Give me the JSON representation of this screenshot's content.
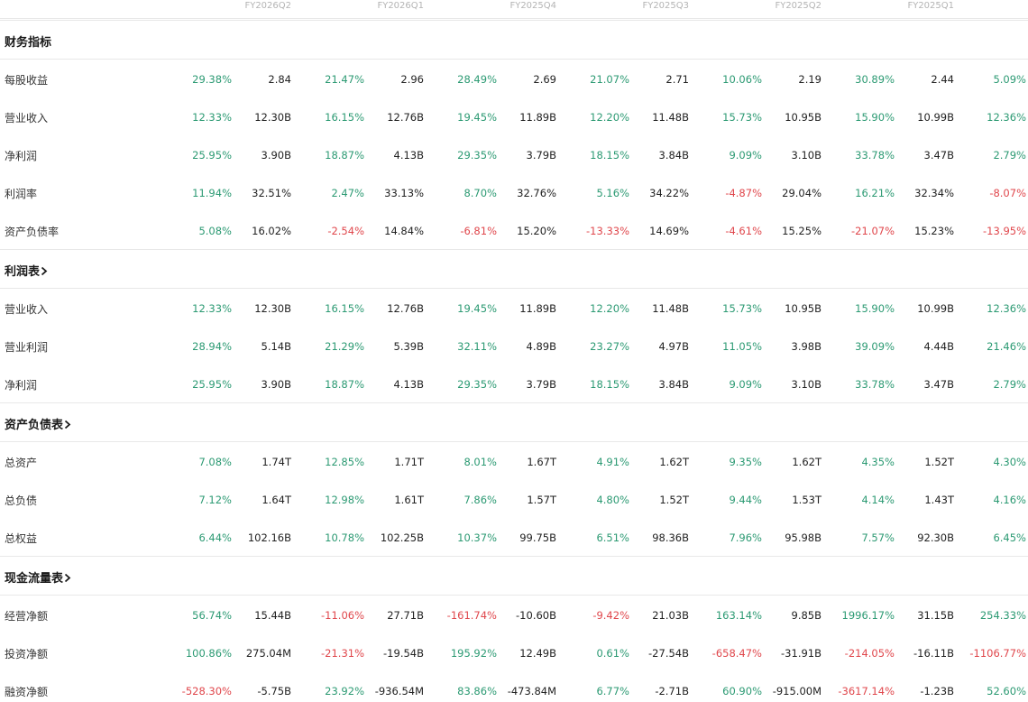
{
  "colors": {
    "positive": "#2c9a73",
    "negative": "#e0474c"
  },
  "periods": [
    "FY2026Q2",
    "FY2026Q1",
    "FY2025Q4",
    "FY2025Q3",
    "FY2025Q2",
    "FY2025Q1"
  ],
  "sections": [
    {
      "title": "财务指标",
      "has_chevron": false,
      "rows": [
        {
          "label": "每股收益",
          "cells": [
            [
              "29.38%",
              "2.84"
            ],
            [
              "21.47%",
              "2.96"
            ],
            [
              "28.49%",
              "2.69"
            ],
            [
              "21.07%",
              "2.71"
            ],
            [
              "10.06%",
              "2.19"
            ],
            [
              "30.89%",
              "2.44"
            ],
            [
              "5.09%",
              ""
            ]
          ]
        },
        {
          "label": "营业收入",
          "cells": [
            [
              "12.33%",
              "12.30B"
            ],
            [
              "16.15%",
              "12.76B"
            ],
            [
              "19.45%",
              "11.89B"
            ],
            [
              "12.20%",
              "11.48B"
            ],
            [
              "15.73%",
              "10.95B"
            ],
            [
              "15.90%",
              "10.99B"
            ],
            [
              "12.36%",
              ""
            ]
          ]
        },
        {
          "label": "净利润",
          "cells": [
            [
              "25.95%",
              "3.90B"
            ],
            [
              "18.87%",
              "4.13B"
            ],
            [
              "29.35%",
              "3.79B"
            ],
            [
              "18.15%",
              "3.84B"
            ],
            [
              "9.09%",
              "3.10B"
            ],
            [
              "33.78%",
              "3.47B"
            ],
            [
              "2.79%",
              ""
            ]
          ]
        },
        {
          "label": "利润率",
          "cells": [
            [
              "11.94%",
              "32.51%"
            ],
            [
              "2.47%",
              "33.13%"
            ],
            [
              "8.70%",
              "32.76%"
            ],
            [
              "5.16%",
              "34.22%"
            ],
            [
              "-4.87%",
              "29.04%"
            ],
            [
              "16.21%",
              "32.34%"
            ],
            [
              "-8.07%",
              ""
            ]
          ]
        },
        {
          "label": "资产负债率",
          "cells": [
            [
              "5.08%",
              "16.02%"
            ],
            [
              "-2.54%",
              "14.84%"
            ],
            [
              "-6.81%",
              "15.20%"
            ],
            [
              "-13.33%",
              "14.69%"
            ],
            [
              "-4.61%",
              "15.25%"
            ],
            [
              "-21.07%",
              "15.23%"
            ],
            [
              "-13.95%",
              ""
            ]
          ]
        }
      ]
    },
    {
      "title": "利润表",
      "has_chevron": true,
      "rows": [
        {
          "label": "营业收入",
          "cells": [
            [
              "12.33%",
              "12.30B"
            ],
            [
              "16.15%",
              "12.76B"
            ],
            [
              "19.45%",
              "11.89B"
            ],
            [
              "12.20%",
              "11.48B"
            ],
            [
              "15.73%",
              "10.95B"
            ],
            [
              "15.90%",
              "10.99B"
            ],
            [
              "12.36%",
              ""
            ]
          ]
        },
        {
          "label": "营业利润",
          "cells": [
            [
              "28.94%",
              "5.14B"
            ],
            [
              "21.29%",
              "5.39B"
            ],
            [
              "32.11%",
              "4.89B"
            ],
            [
              "23.27%",
              "4.97B"
            ],
            [
              "11.05%",
              "3.98B"
            ],
            [
              "39.09%",
              "4.44B"
            ],
            [
              "21.46%",
              ""
            ]
          ]
        },
        {
          "label": "净利润",
          "cells": [
            [
              "25.95%",
              "3.90B"
            ],
            [
              "18.87%",
              "4.13B"
            ],
            [
              "29.35%",
              "3.79B"
            ],
            [
              "18.15%",
              "3.84B"
            ],
            [
              "9.09%",
              "3.10B"
            ],
            [
              "33.78%",
              "3.47B"
            ],
            [
              "2.79%",
              ""
            ]
          ]
        }
      ]
    },
    {
      "title": "资产负债表",
      "has_chevron": true,
      "rows": [
        {
          "label": "总资产",
          "cells": [
            [
              "7.08%",
              "1.74T"
            ],
            [
              "12.85%",
              "1.71T"
            ],
            [
              "8.01%",
              "1.67T"
            ],
            [
              "4.91%",
              "1.62T"
            ],
            [
              "9.35%",
              "1.62T"
            ],
            [
              "4.35%",
              "1.52T"
            ],
            [
              "4.30%",
              ""
            ]
          ]
        },
        {
          "label": "总负债",
          "cells": [
            [
              "7.12%",
              "1.64T"
            ],
            [
              "12.98%",
              "1.61T"
            ],
            [
              "7.86%",
              "1.57T"
            ],
            [
              "4.80%",
              "1.52T"
            ],
            [
              "9.44%",
              "1.53T"
            ],
            [
              "4.14%",
              "1.43T"
            ],
            [
              "4.16%",
              ""
            ]
          ]
        },
        {
          "label": "总权益",
          "cells": [
            [
              "6.44%",
              "102.16B"
            ],
            [
              "10.78%",
              "102.25B"
            ],
            [
              "10.37%",
              "99.75B"
            ],
            [
              "6.51%",
              "98.36B"
            ],
            [
              "7.96%",
              "95.98B"
            ],
            [
              "7.57%",
              "92.30B"
            ],
            [
              "6.45%",
              ""
            ]
          ]
        }
      ]
    },
    {
      "title": "现金流量表",
      "has_chevron": true,
      "rows": [
        {
          "label": "经营净额",
          "cells": [
            [
              "56.74%",
              "15.44B"
            ],
            [
              "-11.06%",
              "27.71B"
            ],
            [
              "-161.74%",
              "-10.60B"
            ],
            [
              "-9.42%",
              "21.03B"
            ],
            [
              "163.14%",
              "9.85B"
            ],
            [
              "1996.17%",
              "31.15B"
            ],
            [
              "254.33%",
              ""
            ]
          ]
        },
        {
          "label": "投资净额",
          "cells": [
            [
              "100.86%",
              "275.04M"
            ],
            [
              "-21.31%",
              "-19.54B"
            ],
            [
              "195.92%",
              "12.49B"
            ],
            [
              "0.61%",
              "-27.54B"
            ],
            [
              "-658.47%",
              "-31.91B"
            ],
            [
              "-214.05%",
              "-16.11B"
            ],
            [
              "-1106.77%",
              ""
            ]
          ]
        },
        {
          "label": "融资净额",
          "cells": [
            [
              "-528.30%",
              "-5.75B"
            ],
            [
              "23.92%",
              "-936.54M"
            ],
            [
              "83.86%",
              "-473.84M"
            ],
            [
              "6.77%",
              "-2.71B"
            ],
            [
              "60.90%",
              "-915.00M"
            ],
            [
              "-3617.14%",
              "-1.23B"
            ],
            [
              "52.60%",
              ""
            ]
          ]
        }
      ]
    }
  ]
}
